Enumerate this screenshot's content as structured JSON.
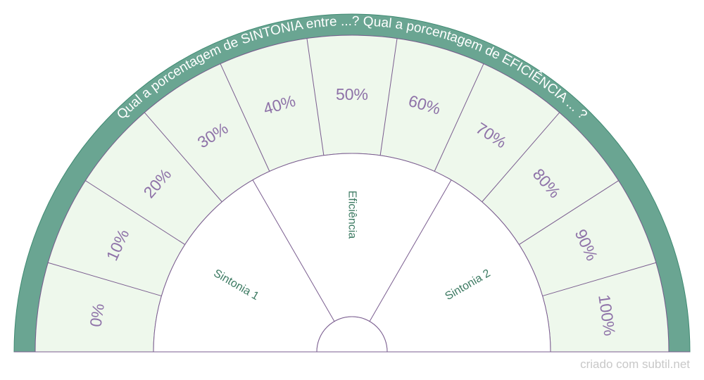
{
  "chart": {
    "title": "Qual a porcentagem de SINTONIA entre ...? Qual a porcentagem de EFICIÊNCIA ... ?",
    "scale_labels": [
      "0%",
      "10%",
      "20%",
      "30%",
      "40%",
      "50%",
      "60%",
      "70%",
      "80%",
      "90%",
      "100%"
    ],
    "sectors": [
      "Sintonia 1",
      "Eficiência",
      "Sintonia 2"
    ],
    "colors": {
      "rim": "#6aa592",
      "rim_stroke": "#3f8a72",
      "band_fill": "#eef8ec",
      "line": "#7a5d8f",
      "scale_text": "#8e72a8",
      "sector_text": "#3c7a62",
      "title_text": "#ffffff"
    }
  },
  "footer": {
    "credit": "criado com subtil.net"
  }
}
